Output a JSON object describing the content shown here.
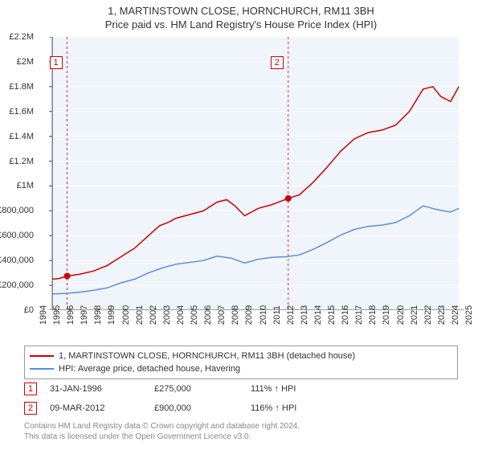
{
  "title": "1, MARTINSTOWN CLOSE, HORNCHURCH, RM11 3BH",
  "subtitle": "Price paid vs. HM Land Registry's House Price Index (HPI)",
  "chart": {
    "type": "line",
    "background_color": "#ffffff",
    "plot_background_color": "#f0f4fb",
    "grid_color": "#ffffff",
    "axis_color": "#444444",
    "x_min": 1994,
    "x_max": 2025,
    "y_min": 0,
    "y_max": 2200000,
    "y_tick_step": 200000,
    "y_tick_labels": [
      "£0",
      "£200,000",
      "£400,000",
      "£600,000",
      "£800,000",
      "£1M",
      "£1.2M",
      "£1.4M",
      "£1.6M",
      "£1.8M",
      "£2M",
      "£2.2M"
    ],
    "x_ticks": [
      1994,
      1995,
      1996,
      1997,
      1998,
      1999,
      2000,
      2001,
      2002,
      2003,
      2004,
      2005,
      2006,
      2007,
      2008,
      2009,
      2010,
      2011,
      2012,
      2013,
      2014,
      2015,
      2016,
      2017,
      2018,
      2019,
      2020,
      2021,
      2022,
      2023,
      2024,
      2025
    ],
    "series": [
      {
        "name": "1, MARTINSTOWN CLOSE, HORNCHURCH, RM11 3BH (detached house)",
        "color": "#cc0000",
        "line_width": 1.5,
        "points": [
          [
            1995.0,
            250000
          ],
          [
            1995.5,
            255000
          ],
          [
            1996.08,
            275000
          ],
          [
            1997,
            290000
          ],
          [
            1998,
            315000
          ],
          [
            1999,
            360000
          ],
          [
            2000,
            430000
          ],
          [
            2001,
            500000
          ],
          [
            2002,
            600000
          ],
          [
            2002.8,
            680000
          ],
          [
            2003.5,
            710000
          ],
          [
            2004,
            740000
          ],
          [
            2005,
            770000
          ],
          [
            2006,
            800000
          ],
          [
            2007,
            870000
          ],
          [
            2007.7,
            890000
          ],
          [
            2008.3,
            840000
          ],
          [
            2009,
            760000
          ],
          [
            2010,
            820000
          ],
          [
            2011,
            850000
          ],
          [
            2012.18,
            900000
          ],
          [
            2013,
            930000
          ],
          [
            2014,
            1030000
          ],
          [
            2015,
            1150000
          ],
          [
            2016,
            1280000
          ],
          [
            2017,
            1380000
          ],
          [
            2018,
            1430000
          ],
          [
            2019,
            1450000
          ],
          [
            2020,
            1490000
          ],
          [
            2021,
            1600000
          ],
          [
            2022,
            1780000
          ],
          [
            2022.7,
            1800000
          ],
          [
            2023.3,
            1720000
          ],
          [
            2024,
            1680000
          ],
          [
            2024.6,
            1800000
          ]
        ]
      },
      {
        "name": "HPI: Average price, detached house, Havering",
        "color": "#5b8fd6",
        "line_width": 1.5,
        "points": [
          [
            1995.0,
            130000
          ],
          [
            1996,
            135000
          ],
          [
            1997,
            145000
          ],
          [
            1998,
            160000
          ],
          [
            1999,
            180000
          ],
          [
            2000,
            220000
          ],
          [
            2001,
            250000
          ],
          [
            2002,
            300000
          ],
          [
            2003,
            340000
          ],
          [
            2004,
            370000
          ],
          [
            2005,
            385000
          ],
          [
            2006,
            400000
          ],
          [
            2007,
            435000
          ],
          [
            2008,
            420000
          ],
          [
            2009,
            380000
          ],
          [
            2010,
            410000
          ],
          [
            2011,
            425000
          ],
          [
            2012,
            430000
          ],
          [
            2013,
            445000
          ],
          [
            2014,
            490000
          ],
          [
            2015,
            545000
          ],
          [
            2016,
            605000
          ],
          [
            2017,
            650000
          ],
          [
            2018,
            675000
          ],
          [
            2019,
            685000
          ],
          [
            2020,
            705000
          ],
          [
            2021,
            760000
          ],
          [
            2022,
            840000
          ],
          [
            2023,
            810000
          ],
          [
            2024,
            790000
          ],
          [
            2024.6,
            820000
          ]
        ]
      }
    ],
    "sale_markers": [
      {
        "n": "1",
        "x": 1996.08,
        "y": 275000
      },
      {
        "n": "2",
        "x": 2012.18,
        "y": 900000
      }
    ],
    "label_fontsize": 11,
    "title_fontsize": 13
  },
  "legend": {
    "items": [
      {
        "color": "#cc0000",
        "label": "1, MARTINSTOWN CLOSE, HORNCHURCH, RM11 3BH (detached house)"
      },
      {
        "color": "#5b8fd6",
        "label": "HPI: Average price, detached house, Havering"
      }
    ]
  },
  "sales": [
    {
      "n": "1",
      "date": "31-JAN-1996",
      "price": "£275,000",
      "ratio": "111% ↑ HPI"
    },
    {
      "n": "2",
      "date": "09-MAR-2012",
      "price": "£900,000",
      "ratio": "116% ↑ HPI"
    }
  ],
  "footnote_line1": "Contains HM Land Registry data © Crown copyright and database right 2024.",
  "footnote_line2": "This data is licensed under the Open Government Licence v3.0."
}
